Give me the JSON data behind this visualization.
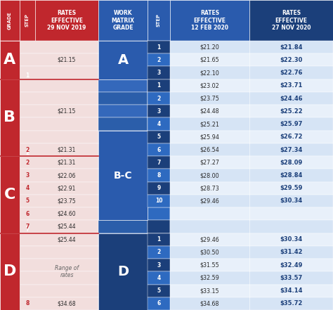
{
  "colors": {
    "red_dark": "#C0272D",
    "red_light": "#F2DEDD",
    "blue_dark": "#1B3F7A",
    "blue_medium": "#2A5BAD",
    "blue_step_dark": "#1B3F7A",
    "blue_step_light": "#2E6AC0",
    "blue_row_light": "#D6E4F5",
    "blue_row_lighter": "#E8F0FA",
    "white": "#FFFFFF",
    "text_dark": "#1B3F7A",
    "text_black": "#2A2A2A",
    "text_gray": "#666666"
  },
  "header_labels": [
    "GRADE",
    "STEP",
    "RATES\nEFFECTIVE\n29 NOV 2019",
    "WORK\nMATRIX\nGRADE",
    "STEP",
    "RATES\nEFFECTIVE\n12 FEB 2020",
    "RATES\nEFFECTIVE\n27 NOV 2020"
  ],
  "grade_spans": [
    {
      "grade": "A",
      "rows": [
        0,
        2
      ]
    },
    {
      "grade": "B",
      "rows": [
        3,
        8
      ]
    },
    {
      "grade": "C",
      "rows": [
        9,
        14
      ]
    },
    {
      "grade": "D",
      "rows": [
        15,
        20
      ]
    }
  ],
  "matrix_spans": [
    {
      "label": "A",
      "rows": [
        0,
        2
      ],
      "color": "#2A5BAD"
    },
    {
      "label": "B-C",
      "rows": [
        7,
        13
      ],
      "color": "#2A5BAD"
    },
    {
      "label": "D",
      "rows": [
        15,
        20
      ],
      "color": "#1B3F7A"
    }
  ],
  "step_separators": [
    {
      "row_after": 2,
      "step": "1"
    },
    {
      "row_after": 8,
      "step": "2"
    },
    {
      "row_after": 14,
      "step": "7"
    }
  ],
  "old_rate_blocks": [
    {
      "rows": [
        0,
        2
      ],
      "text": "$21.15",
      "italic": false
    },
    {
      "rows": [
        3,
        7
      ],
      "text": "$21.15",
      "italic": false
    },
    {
      "rows": [
        8,
        8
      ],
      "text": "$21.31",
      "italic": false
    },
    {
      "rows": [
        9,
        9
      ],
      "text": "$21.31",
      "italic": false
    },
    {
      "rows": [
        10,
        10
      ],
      "text": "$22.06",
      "italic": false
    },
    {
      "rows": [
        11,
        11
      ],
      "text": "$22.91",
      "italic": false
    },
    {
      "rows": [
        12,
        12
      ],
      "text": "$23.75",
      "italic": false
    },
    {
      "rows": [
        13,
        13
      ],
      "text": "$24.60",
      "italic": false
    },
    {
      "rows": [
        14,
        14
      ],
      "text": "$25.44",
      "italic": false
    },
    {
      "rows": [
        15,
        15
      ],
      "text": "$25.44",
      "italic": false
    },
    {
      "rows": [
        16,
        19
      ],
      "text": "Range of\nrates",
      "italic": true
    },
    {
      "rows": [
        20,
        20
      ],
      "text": "$34.68",
      "italic": false
    }
  ],
  "step_col_right": [
    {
      "row": 0,
      "step": "1",
      "dark": true
    },
    {
      "row": 1,
      "step": "2",
      "dark": false
    },
    {
      "row": 2,
      "step": "3",
      "dark": true
    },
    {
      "row": 3,
      "step": "1",
      "dark": true
    },
    {
      "row": 4,
      "step": "2",
      "dark": false
    },
    {
      "row": 5,
      "step": "3",
      "dark": true
    },
    {
      "row": 6,
      "step": "4",
      "dark": false
    },
    {
      "row": 7,
      "step": "5",
      "dark": true
    },
    {
      "row": 8,
      "step": "6",
      "dark": false
    },
    {
      "row": 9,
      "step": "7",
      "dark": true
    },
    {
      "row": 10,
      "step": "8",
      "dark": false
    },
    {
      "row": 11,
      "step": "9",
      "dark": true
    },
    {
      "row": 12,
      "step": "10",
      "dark": false
    },
    {
      "row": 13,
      "step": "",
      "dark": true
    },
    {
      "row": 14,
      "step": "",
      "dark": false
    },
    {
      "row": 15,
      "step": "1",
      "dark": true
    },
    {
      "row": 16,
      "step": "2",
      "dark": false
    },
    {
      "row": 17,
      "step": "3",
      "dark": true
    },
    {
      "row": 18,
      "step": "4",
      "dark": false
    },
    {
      "row": 19,
      "step": "5",
      "dark": true
    },
    {
      "row": 20,
      "step": "6",
      "dark": false
    }
  ],
  "data_rows": [
    {
      "rate_feb": "$21.20",
      "rate_nov": "$21.84"
    },
    {
      "rate_feb": "$21.65",
      "rate_nov": "$22.30"
    },
    {
      "rate_feb": "$22.10",
      "rate_nov": "$22.76"
    },
    {
      "rate_feb": "$23.02",
      "rate_nov": "$23.71"
    },
    {
      "rate_feb": "$23.75",
      "rate_nov": "$24.46"
    },
    {
      "rate_feb": "$24.48",
      "rate_nov": "$25.22"
    },
    {
      "rate_feb": "$25.21",
      "rate_nov": "$25.97"
    },
    {
      "rate_feb": "$25.94",
      "rate_nov": "$26.72"
    },
    {
      "rate_feb": "$26.54",
      "rate_nov": "$27.34"
    },
    {
      "rate_feb": "$27.27",
      "rate_nov": "$28.09"
    },
    {
      "rate_feb": "$28.00",
      "rate_nov": "$28.84"
    },
    {
      "rate_feb": "$28.73",
      "rate_nov": "$29.59"
    },
    {
      "rate_feb": "$29.46",
      "rate_nov": "$30.34"
    },
    {
      "rate_feb": "",
      "rate_nov": ""
    },
    {
      "rate_feb": "",
      "rate_nov": ""
    },
    {
      "rate_feb": "$29.46",
      "rate_nov": "$30.34"
    },
    {
      "rate_feb": "$30.50",
      "rate_nov": "$31.42"
    },
    {
      "rate_feb": "$31.55",
      "rate_nov": "$32.49"
    },
    {
      "rate_feb": "$32.59",
      "rate_nov": "$33.57"
    },
    {
      "rate_feb": "$33.15",
      "rate_nov": "$34.14"
    },
    {
      "rate_feb": "$34.68",
      "rate_nov": "$35.72"
    }
  ],
  "left_step_col": [
    {
      "row": 8,
      "step": "2"
    },
    {
      "row": 9,
      "step": "2"
    },
    {
      "row": 10,
      "step": "3"
    },
    {
      "row": 11,
      "step": "4"
    },
    {
      "row": 12,
      "step": "5"
    },
    {
      "row": 13,
      "step": "6"
    },
    {
      "row": 14,
      "step": "7"
    },
    {
      "row": 20,
      "step": "8"
    }
  ]
}
